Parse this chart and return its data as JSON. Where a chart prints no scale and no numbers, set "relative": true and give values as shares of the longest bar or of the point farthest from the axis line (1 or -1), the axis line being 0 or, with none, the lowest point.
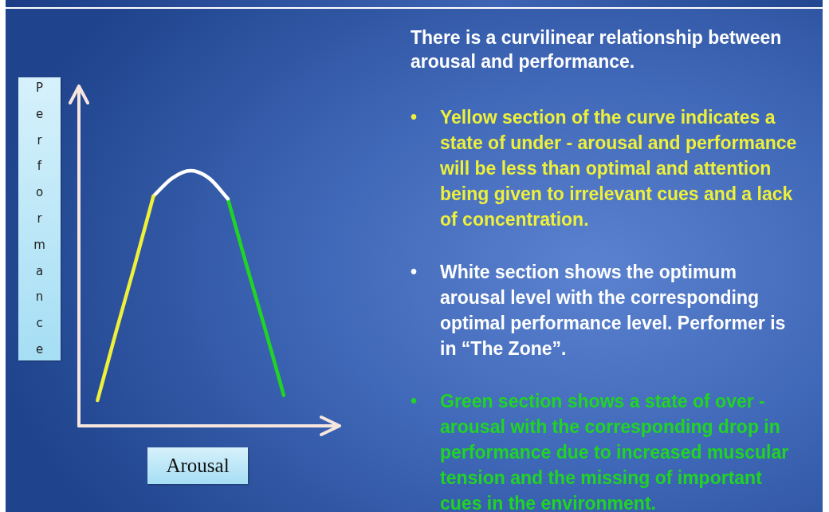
{
  "chart_data": {
    "type": "line",
    "relative": true,
    "xlabel": "Arousal",
    "ylabel": "Performance",
    "categories": [
      null,
      null,
      null,
      null,
      null,
      null,
      null,
      null,
      null,
      null,
      null,
      null,
      null,
      null,
      null
    ],
    "series": [
      {
        "color": "#eef03a",
        "values": [
          null,
          0.1,
          0.37,
          0.63,
          0.9,
          null,
          null,
          null,
          null,
          null,
          null,
          null,
          null,
          null,
          null
        ]
      },
      {
        "color": "#ffffff",
        "values": [
          null,
          null,
          null,
          null,
          0.9,
          0.97,
          1,
          0.97,
          0.89,
          null,
          null,
          null,
          null,
          null,
          null
        ]
      },
      {
        "color": "#20d424",
        "values": [
          null,
          null,
          null,
          null,
          null,
          null,
          null,
          null,
          0.89,
          0.63,
          0.38,
          0.12,
          null,
          null,
          null
        ]
      }
    ],
    "annotations": [
      "There is a curvilinear relationship between arousal and performance.",
      "• Yellow section of the curve indicates a state of under - arousal and performance will be less than optimal and attention being given to irrelevant cues and a lack of concentration.",
      "• White section shows the optimum arousal level with the corresponding optimal performance level. Performer is in “The Zone”.",
      "• Green section shows a state of over - arousal with the corresponding drop in performance due to increased muscular tension and the missing of important cues in the environment."
    ],
    "marker": "none",
    "line_style": "solid"
  }
}
